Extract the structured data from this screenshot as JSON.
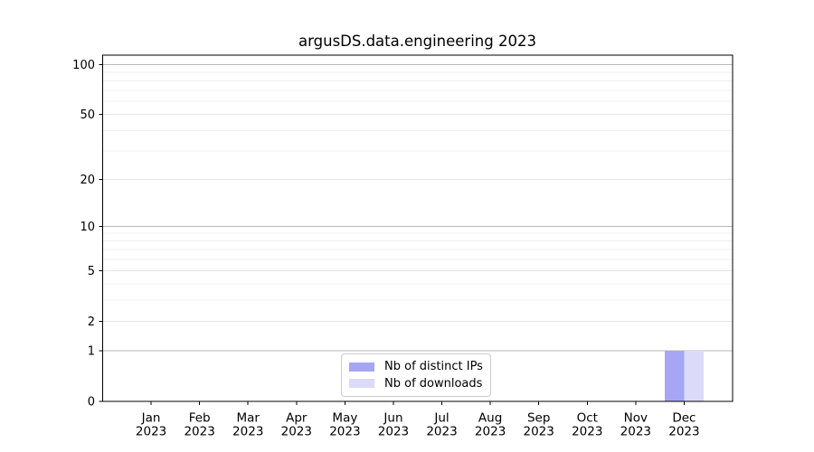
{
  "chart_data": {
    "type": "bar",
    "title": "argusDS.data.engineering 2023",
    "categories": [
      "Jan",
      "Feb",
      "Mar",
      "Apr",
      "May",
      "Jun",
      "Jul",
      "Aug",
      "Sep",
      "Oct",
      "Nov",
      "Dec"
    ],
    "x_tick_second_line": "2023",
    "series": [
      {
        "name": "Nb of distinct IPs",
        "color": "#a6a6f5",
        "values": [
          0,
          0,
          0,
          0,
          0,
          0,
          0,
          0,
          0,
          0,
          0,
          1
        ]
      },
      {
        "name": "Nb of downloads",
        "color": "#dbdbf9",
        "values": [
          0,
          0,
          0,
          0,
          0,
          0,
          0,
          0,
          0,
          0,
          0,
          1
        ]
      }
    ],
    "yscale": "log1p",
    "ylim": [
      0,
      114
    ],
    "xlim": [
      -1,
      12
    ],
    "y_tick_values": [
      0,
      1,
      2,
      5,
      10,
      20,
      50,
      100
    ],
    "y_major_gridlines": [
      1,
      10,
      100
    ],
    "y_mid_gridlines": [
      2,
      5,
      20,
      50
    ],
    "y_minor_gridlines": [
      3,
      4,
      6,
      7,
      8,
      9,
      30,
      40,
      60,
      70,
      80,
      90
    ],
    "bar_width_units": 0.4,
    "legend_position": "lower center",
    "grid": "on",
    "colors": {
      "grid_major": "#b9b9b9",
      "grid_mid": "#e6e6e6",
      "grid_minor": "#f0f0f0",
      "spine": "#000000",
      "tick": "#000000",
      "background": "#ffffff",
      "legend_border": "#cccccc"
    }
  }
}
